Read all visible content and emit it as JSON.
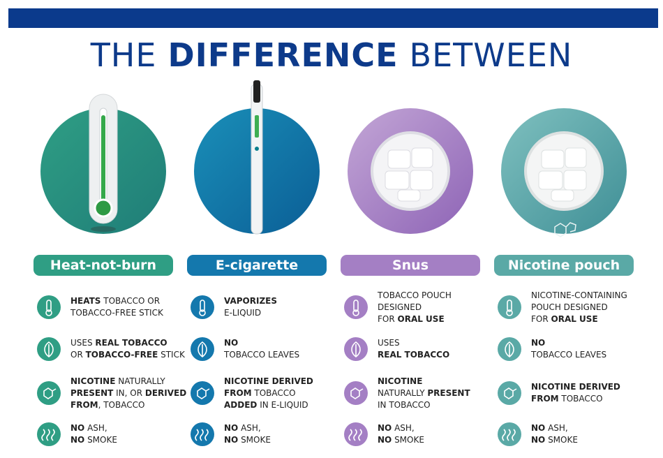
{
  "header": {
    "title": [
      "THE",
      "DIFFERENCE",
      "BETWEEN"
    ]
  },
  "columns": [
    {
      "name": "Heat-not-burn",
      "features": [
        [
          [
            {
              "bold": "HEATS"
            },
            " TOBACCO OR"
          ],
          [
            "TOBACCO-FREE STICK"
          ]
        ],
        [
          [
            "USES ",
            {
              "bold": "REAL TOBACCO"
            }
          ],
          [
            "OR ",
            {
              "bold": "TOBACCO-FREE"
            },
            " STICK"
          ]
        ],
        [
          [
            {
              "bold": "NICOTINE"
            },
            " NATURALLY"
          ],
          [
            {
              "bold": "PRESENT"
            },
            " IN, OR ",
            {
              "bold": "DERIVED"
            }
          ],
          [
            {
              "bold": "FROM"
            },
            ", TOBACCO"
          ]
        ],
        [
          [
            {
              "bold": "NO"
            },
            " ASH,"
          ],
          [
            {
              "bold": "NO"
            },
            " SMOKE"
          ]
        ]
      ]
    },
    {
      "name": "E-cigarette",
      "features": [
        [
          [
            {
              "bold": "VAPORIZES"
            }
          ],
          [
            "E-LIQUID"
          ]
        ],
        [
          [
            {
              "bold": "NO"
            }
          ],
          [
            "TOBACCO LEAVES"
          ]
        ],
        [
          [
            {
              "bold": "NICOTINE DERIVED"
            }
          ],
          [
            {
              "bold": "FROM"
            },
            " TOBACCO"
          ],
          [
            {
              "bold": "ADDED"
            },
            " IN E-LIQUID"
          ]
        ],
        [
          [
            {
              "bold": "NO"
            },
            " ASH,"
          ],
          [
            {
              "bold": "NO"
            },
            " SMOKE"
          ]
        ]
      ]
    },
    {
      "name": "Snus",
      "features": [
        [
          [
            "TOBACCO POUCH"
          ],
          [
            "DESIGNED"
          ],
          [
            "FOR ",
            {
              "bold": "ORAL USE"
            }
          ]
        ],
        [
          [
            "USES"
          ],
          [
            {
              "bold": "REAL TOBACCO"
            }
          ]
        ],
        [
          [
            {
              "bold": "NICOTINE"
            }
          ],
          [
            "NATURALLY ",
            {
              "bold": "PRESENT"
            }
          ],
          [
            "IN TOBACCO"
          ]
        ],
        [
          [
            {
              "bold": "NO"
            },
            " ASH,"
          ],
          [
            {
              "bold": "NO"
            },
            " SMOKE"
          ]
        ]
      ]
    },
    {
      "name": "Nicotine pouch",
      "features": [
        [
          [
            "NICOTINE-CONTAINING"
          ],
          [
            "POUCH DESIGNED"
          ],
          [
            "FOR ",
            {
              "bold": "ORAL USE"
            }
          ]
        ],
        [
          [
            {
              "bold": "NO"
            }
          ],
          [
            "TOBACCO LEAVES"
          ]
        ],
        [
          [
            {
              "bold": "NICOTINE DERIVED"
            }
          ],
          [
            {
              "bold": "FROM"
            },
            " TOBACCO"
          ]
        ],
        [
          [
            {
              "bold": "NO"
            },
            " ASH,"
          ],
          [
            {
              "bold": "NO"
            },
            " SMOKE"
          ]
        ]
      ]
    }
  ]
}
